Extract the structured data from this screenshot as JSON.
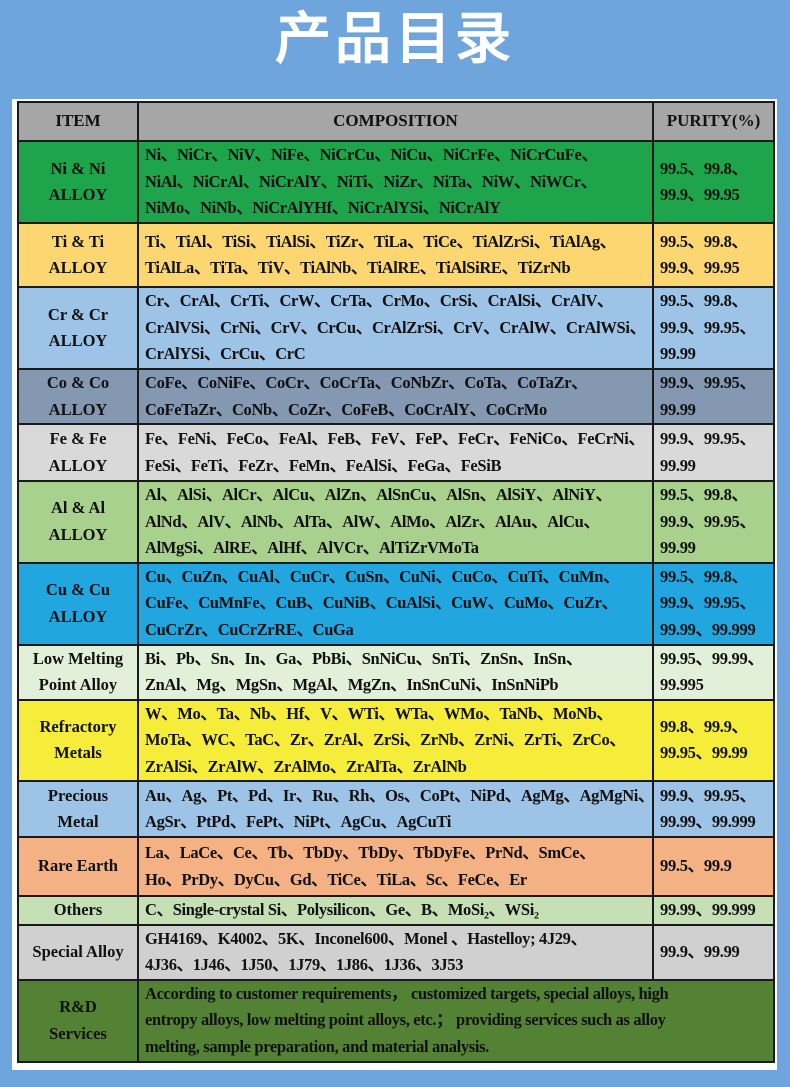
{
  "title": "产品目录",
  "headers": {
    "item": "ITEM",
    "composition": "COMPOSITION",
    "purity": "PURITY(%)"
  },
  "rows": [
    {
      "item": [
        "Ni & Ni",
        "ALLOY"
      ],
      "color": "#1ea54b",
      "composition": [
        "Ni、NiCr、NiV、NiFe、NiCrCu、NiCu、NiCrFe、NiCrCuFe、",
        "NiAl、NiCrAl、NiCrAlY、NiTi、NiZr、NiTa、NiW、NiWCr、",
        "NiMo、NiNb、NiCrAlYHf、NiCrAlYSi、NiCrAlY"
      ],
      "purity": [
        "99.5、99.8、",
        "99.9、99.95"
      ]
    },
    {
      "item": [
        "Ti & Ti",
        "ALLOY"
      ],
      "color": "#fcd670",
      "composition": [
        "Ti、TiAl、TiSi、TiAlSi、TiZr、TiLa、TiCe、TiAlZrSi、TiAlAg、",
        "TiAlLa、TiTa、TiV、TiAlNb、TiAlRE、TiAlSiRE、TiZrNb"
      ],
      "purity": [
        "99.5、99.8、",
        "99.9、99.95"
      ]
    },
    {
      "item": [
        "Cr & Cr",
        "ALLOY"
      ],
      "color": "#9dc3e6",
      "composition": [
        "Cr、CrAl、CrTi、CrW、CrTa、CrMo、CrSi、CrAlSi、CrAlV、",
        "CrAlVSi、CrNi、CrV、CrCu、CrAlZrSi、CrV、CrAlW、CrAlWSi、",
        "CrAlYSi、CrCu、CrC"
      ],
      "purity": [
        "99.5、99.8、",
        "99.9、99.95、",
        "99.99"
      ]
    },
    {
      "item": [
        "Co & Co",
        "ALLOY"
      ],
      "color": "#8598b2",
      "composition": [
        "CoFe、CoNiFe、CoCr、CoCrTa、CoNbZr、CoTa、CoTaZr、",
        "CoFeTaZr、CoNb、CoZr、CoFeB、CoCrAlY、CoCrMo"
      ],
      "purity": [
        "99.9、99.95、",
        "99.99"
      ]
    },
    {
      "item": [
        "Fe & Fe",
        "ALLOY"
      ],
      "color": "#d9d9d9",
      "composition": [
        "Fe、FeNi、FeCo、FeAl、FeB、FeV、FeP、FeCr、FeNiCo、FeCrNi、",
        "FeSi、FeTi、FeZr、FeMn、FeAlSi、FeGa、FeSiB"
      ],
      "purity": [
        "99.9、99.95、",
        "99.99"
      ]
    },
    {
      "item": [
        "Al & Al",
        "ALLOY"
      ],
      "color": "#a9d18e",
      "composition": [
        "Al、AlSi、AlCr、AlCu、AlZn、AlSnCu、AlSn、AlSiY、AlNiY、",
        "AlNd、AlV、AlNb、AlTa、AlW、AlMo、AlZr、AlAu、AlCu、",
        "AlMgSi、AlRE、AlHf、AlVCr、AlTiZrVMoTa"
      ],
      "purity": [
        "99.5、99.8、",
        "99.9、99.95、",
        "99.99"
      ]
    },
    {
      "item": [
        "Cu & Cu",
        "ALLOY"
      ],
      "color": "#22a6e0",
      "composition": [
        "Cu、CuZn、CuAl、CuCr、CuSn、CuNi、CuCo、CuTi、CuMn、",
        "CuFe、CuMnFe、CuB、CuNiB、CuAlSi、CuW、CuMo、CuZr、",
        "CuCrZr、CuCrZrRE、CuGa"
      ],
      "purity": [
        "99.5、99.8、",
        "99.9、99.95、",
        "99.99、99.999"
      ]
    },
    {
      "item": [
        "Low Melting",
        "Point Alloy"
      ],
      "color": "#e2f0d9",
      "composition": [
        "Bi、Pb、Sn、In、Ga、PbBi、SnNiCu、SnTi、ZnSn、InSn、",
        "ZnAl、Mg、MgSn、MgAl、MgZn、InSnCuNi、InSnNiPb"
      ],
      "purity": [
        "99.95、99.99、",
        "99.995"
      ]
    },
    {
      "item": [
        "Refractory",
        "Metals"
      ],
      "color": "#f5ed3a",
      "composition": [
        "W、Mo、Ta、Nb、Hf、V、WTi、WTa、WMo、TaNb、MoNb、",
        "MoTa、WC、TaC、Zr、ZrAl、ZrSi、ZrNb、ZrNi、ZrTi、ZrCo、",
        "ZrAlSi、ZrAlW、ZrAlMo、ZrAlTa、ZrAlNb"
      ],
      "purity": [
        "99.8、99.9、",
        "99.95、99.99"
      ]
    },
    {
      "item": [
        "Precious",
        "Metal"
      ],
      "color": "#9dc3e6",
      "composition": [
        "Au、Ag、Pt、Pd、Ir、Ru、Rh、Os、CoPt、NiPd、AgMg、AgMgNi、",
        "AgSr、PtPd、FePt、NiPt、AgCu、AgCuTi"
      ],
      "purity": [
        "99.9、99.95、",
        "99.99、99.999"
      ]
    },
    {
      "item": [
        "Rare Earth"
      ],
      "color": "#f4b183",
      "composition": [
        "La、LaCe、Ce、Tb、TbDy、TbDy、TbDyFe、PrNd、SmCe、",
        "Ho、PrDy、DyCu、Gd、TiCe、TiLa、Sc、FeCe、Er"
      ],
      "purity": [
        "99.5、99.9"
      ]
    },
    {
      "item": [
        "Others"
      ],
      "color": "#c5e0b4",
      "composition": [
        "C、Single-crystal Si、Polysilicon、Ge、B、MoSi₂、WSi₂"
      ],
      "purity": [
        "99.99、99.999"
      ]
    },
    {
      "item": [
        "Special Alloy"
      ],
      "color": "#d0d0d0",
      "composition": [
        "GH4169、K4002、5K、Inconel600、Monel 、Hastelloy; 4J29、",
        "4J36、1J46、1J50、1J79、1J86、1J36、3J53"
      ],
      "purity": [
        "99.9、99.99"
      ]
    },
    {
      "item": [
        "R&D",
        "Services"
      ],
      "color": "#548235",
      "composition": [
        "According to customer requirements， customized targets, special alloys, high",
        "entropy alloys, low melting point alloys, etc.； providing services such as alloy",
        "melting, sample preparation, and material analysis."
      ],
      "purity": null
    }
  ]
}
